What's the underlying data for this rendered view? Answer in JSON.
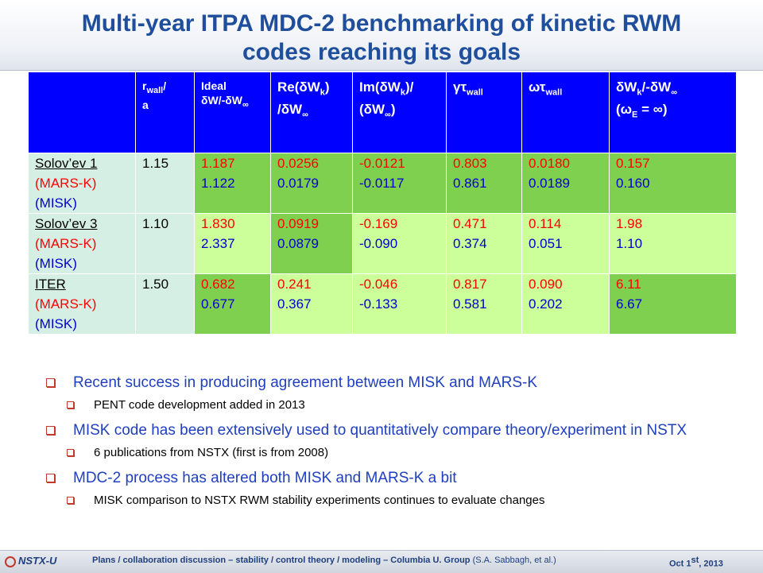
{
  "title": {
    "line1": "Multi-year ITPA MDC-2 benchmarking of kinetic RWM",
    "line2": "codes reaching its goals"
  },
  "table": {
    "headers": {
      "rwall": "r",
      "rwall_sub": "wall",
      "rwall_tail": "/",
      "rwall_a": "a",
      "ideal_1": "Ideal",
      "ideal_2": "δW/-δW",
      "ideal_sub": "∞",
      "re_1": "Re(δW",
      "re_sub": "k",
      "re_2": ")",
      "re_3": "/δW",
      "re_sub2": "∞",
      "im_1": "Im(δW",
      "im_sub": "k",
      "im_2": ")/",
      "im_3": "(δW",
      "im_sub2": "∞",
      "im_4": ")",
      "gamma": "γτ",
      "gamma_sub": "wall",
      "omega": "ωτ",
      "omega_sub": "wall",
      "ratio_1": "δW",
      "ratio_sub": "k",
      "ratio_2": "/-δW",
      "ratio_sub2": "∞",
      "ratio_3": "(ω",
      "ratio_sub3": "E",
      "ratio_4": " = ∞)"
    },
    "rows": [
      {
        "case": "Solov’ev 1",
        "code1": "(MARS-K)",
        "code2": "(MISK)",
        "rwall": "1.15",
        "ideal": [
          "1.187",
          "1.122"
        ],
        "re": [
          "0.0256",
          "0.0179"
        ],
        "im": [
          "-0.0121",
          "-0.0117"
        ],
        "gamma": [
          "0.803",
          "0.861"
        ],
        "omega": [
          "0.0180",
          "0.0189"
        ],
        "ratio": [
          "0.157",
          "0.160"
        ]
      },
      {
        "case": "Solov’ev 3",
        "code1": "(MARS-K)",
        "code2": "(MISK)",
        "rwall": "1.10",
        "ideal": [
          "1.830",
          "2.337"
        ],
        "re": [
          "0.0919",
          "0.0879"
        ],
        "im": [
          "-0.169",
          "-0.090"
        ],
        "gamma": [
          "0.471",
          "0.374"
        ],
        "omega": [
          "0.114",
          "0.051"
        ],
        "ratio": [
          "1.98",
          "1.10"
        ]
      },
      {
        "case": "ITER",
        "code1": "(MARS-K)",
        "code2": "(MISK)",
        "rwall": "1.50",
        "ideal": [
          "0.682",
          "0.677"
        ],
        "re": [
          "0.241",
          "0.367"
        ],
        "im": [
          "-0.046",
          "-0.133"
        ],
        "gamma": [
          "0.817",
          "0.581"
        ],
        "omega": [
          "0.090",
          "0.202"
        ],
        "ratio": [
          "6.11",
          "6.67"
        ]
      }
    ]
  },
  "bullets": [
    {
      "level": 1,
      "text": "Recent success in producing agreement between MISK and MARS-K"
    },
    {
      "level": 2,
      "text": "PENT code development added in 2013"
    },
    {
      "level": 1,
      "text": "MISK code has been extensively used to quantitatively compare theory/experiment in NSTX"
    },
    {
      "level": 2,
      "text": "6 publications from NSTX (first is from 2008)"
    },
    {
      "level": 1,
      "text": "MDC-2 process has altered both MISK and MARS-K a bit"
    },
    {
      "level": 2,
      "text": "MISK comparison to NSTX RWM stability experiments continues to evaluate changes"
    }
  ],
  "footer": {
    "logo": "NSTX-U",
    "text": "Plans / collaboration discussion – stability / control theory / modeling – Columbia U. Group",
    "author": "(S.A. Sabbagh, et al.)",
    "date_main": "Oct 1",
    "date_sup": "st",
    "date_year": ", 2013"
  },
  "colors": {
    "title": "#1f4e9c",
    "header_bg": "#0000ff",
    "cell_dark": "#80d050",
    "cell_light": "#ccff99",
    "case_bg": "#d6efe5",
    "mars_value": "#ff0000",
    "misk_value": "#0000cc",
    "bullet_text": "#1f3fbf"
  }
}
